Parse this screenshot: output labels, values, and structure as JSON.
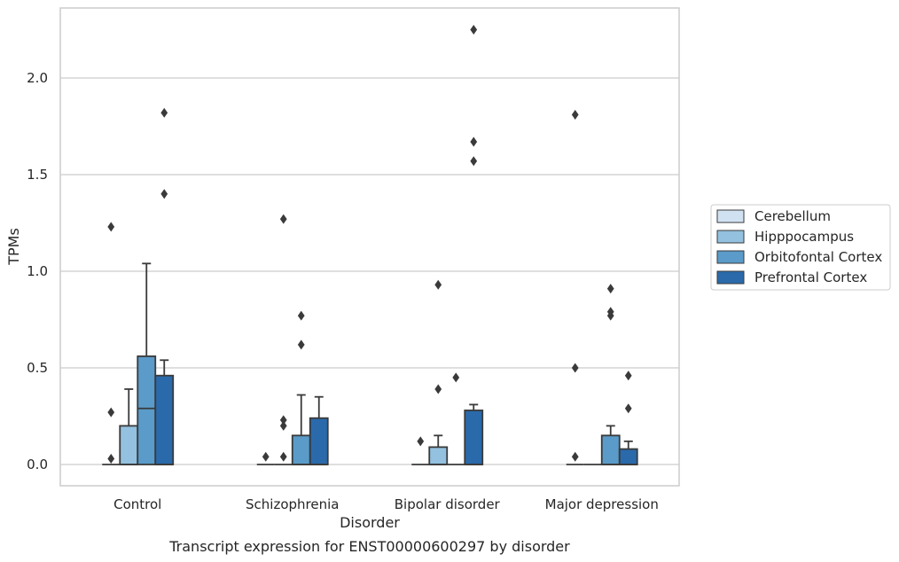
{
  "chart_data": {
    "type": "box",
    "title": "",
    "caption": "Transcript expression for ENST00000600297 by disorder",
    "xlabel": "Disorder",
    "ylabel": "TPMs",
    "ylim": [
      -0.11,
      2.37
    ],
    "yticks": [
      0.0,
      0.5,
      1.0,
      1.5,
      2.0
    ],
    "ytick_labels": [
      "0.0",
      "0.5",
      "1.0",
      "1.5",
      "2.0"
    ],
    "grid": "horizontal",
    "legend_position": "right",
    "categories": [
      "Control",
      "Schizophrenia",
      "Bipolar disorder",
      "Major depression"
    ],
    "series": [
      {
        "name": "Cerebellum",
        "color": "#d0e2f2",
        "boxes": [
          {
            "q1": 0,
            "median": 0,
            "q3": 0,
            "whisker_low": 0,
            "whisker_high": 0,
            "outliers": [
              0.03,
              0.27,
              1.23
            ]
          },
          {
            "q1": 0,
            "median": 0,
            "q3": 0,
            "whisker_low": 0,
            "whisker_high": 0,
            "outliers": [
              0.04
            ]
          },
          {
            "q1": 0,
            "median": 0,
            "q3": 0,
            "whisker_low": 0,
            "whisker_high": 0,
            "outliers": [
              0.12
            ]
          },
          {
            "q1": 0,
            "median": 0,
            "q3": 0,
            "whisker_low": 0,
            "whisker_high": 0,
            "outliers": [
              0.04,
              0.5,
              1.81
            ]
          }
        ]
      },
      {
        "name": "Hipppocampus",
        "color": "#93c1df",
        "boxes": [
          {
            "q1": 0,
            "median": 0,
            "q3": 0.2,
            "whisker_low": 0,
            "whisker_high": 0.39,
            "outliers": []
          },
          {
            "q1": 0,
            "median": 0,
            "q3": 0,
            "whisker_low": 0,
            "whisker_high": 0,
            "outliers": [
              0.04,
              0.2,
              0.23,
              1.27
            ]
          },
          {
            "q1": 0,
            "median": 0,
            "q3": 0.09,
            "whisker_low": 0,
            "whisker_high": 0.15,
            "outliers": [
              0.39,
              0.93
            ]
          },
          {
            "q1": 0,
            "median": 0,
            "q3": 0,
            "whisker_low": 0,
            "whisker_high": 0,
            "outliers": []
          }
        ]
      },
      {
        "name": "Orbitofontal Cortex",
        "color": "#5a9bc9",
        "boxes": [
          {
            "q1": 0,
            "median": 0.29,
            "q3": 0.56,
            "whisker_low": 0,
            "whisker_high": 1.04,
            "outliers": []
          },
          {
            "q1": 0,
            "median": 0,
            "q3": 0.15,
            "whisker_low": 0,
            "whisker_high": 0.36,
            "outliers": [
              0.62,
              0.77
            ]
          },
          {
            "q1": 0,
            "median": 0,
            "q3": 0,
            "whisker_low": 0,
            "whisker_high": 0,
            "outliers": [
              0.45
            ]
          },
          {
            "q1": 0,
            "median": 0,
            "q3": 0.15,
            "whisker_low": 0,
            "whisker_high": 0.2,
            "outliers": [
              0.77,
              0.79,
              0.91
            ]
          }
        ]
      },
      {
        "name": "Prefrontal Cortex",
        "color": "#2a6aab",
        "boxes": [
          {
            "q1": 0,
            "median": 0,
            "q3": 0.46,
            "whisker_low": 0,
            "whisker_high": 0.54,
            "outliers": [
              1.4,
              1.82
            ]
          },
          {
            "q1": 0,
            "median": 0,
            "q3": 0.24,
            "whisker_low": 0,
            "whisker_high": 0.35,
            "outliers": []
          },
          {
            "q1": 0,
            "median": 0,
            "q3": 0.28,
            "whisker_low": 0,
            "whisker_high": 0.31,
            "outliers": [
              1.57,
              1.67,
              2.25
            ]
          },
          {
            "q1": 0,
            "median": 0,
            "q3": 0.08,
            "whisker_low": 0,
            "whisker_high": 0.12,
            "outliers": [
              0.29,
              0.46
            ]
          }
        ]
      }
    ]
  }
}
